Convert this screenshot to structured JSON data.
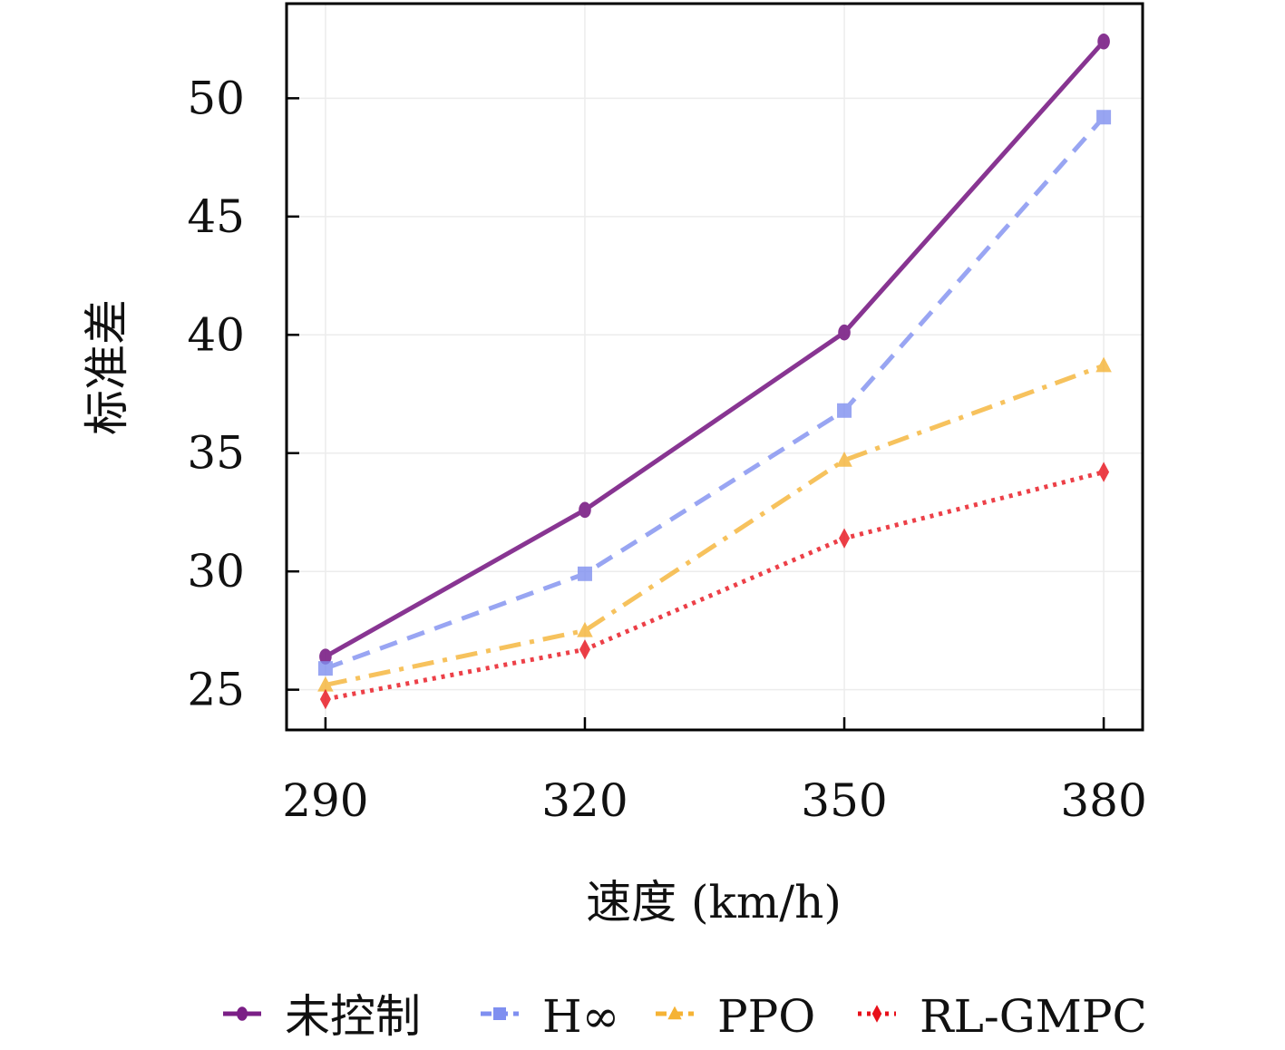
{
  "chart_data": {
    "type": "line",
    "xlabel": "速度 (km/h)",
    "ylabel": "标准差",
    "x": [
      290,
      320,
      350,
      380
    ],
    "xlim": [
      285.5,
      384.5
    ],
    "ylim": [
      23.3,
      54.0
    ],
    "yticks": [
      25,
      30,
      35,
      40,
      45,
      50
    ],
    "xticks": [
      290,
      320,
      350,
      380
    ],
    "grid": true,
    "legend_position": "bottom",
    "series": [
      {
        "name": "未控制",
        "values": [
          26.4,
          32.6,
          40.1,
          52.4
        ],
        "color": "#7B1F86",
        "dash": "solid",
        "marker": "circle"
      },
      {
        "name": "H∞",
        "values": [
          25.9,
          29.9,
          36.8,
          49.2
        ],
        "color": "#7F8FF0",
        "dash": "dashed",
        "marker": "square"
      },
      {
        "name": "PPO",
        "values": [
          25.2,
          27.5,
          34.7,
          38.7
        ],
        "color": "#F5B335",
        "dash": "dashdot",
        "marker": "triangle"
      },
      {
        "name": "RL-GMPC",
        "values": [
          24.6,
          26.7,
          31.4,
          34.2
        ],
        "color": "#E8101A",
        "dash": "dotted",
        "marker": "diamond"
      }
    ]
  }
}
